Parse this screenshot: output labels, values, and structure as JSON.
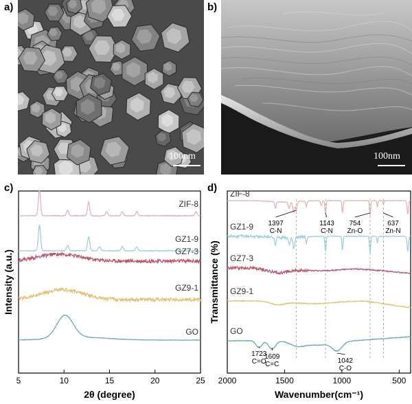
{
  "panels": {
    "a": {
      "label": "a)",
      "scale": "100nm"
    },
    "b": {
      "label": "b)",
      "scale": "100nm"
    },
    "c": {
      "label": "c)"
    },
    "d": {
      "label": "d)"
    }
  },
  "chart_data": [
    {
      "type": "line",
      "panel": "c",
      "xlabel": "2θ (degree)",
      "ylabel": "Intensity (a.u.)",
      "xlim": [
        5,
        25
      ],
      "xticks": [
        5,
        10,
        15,
        20,
        25
      ],
      "grid": false,
      "series": [
        {
          "name": "ZIF-8",
          "color": "#e3b4b9",
          "peaks": [
            7.3,
            10.4,
            12.7,
            14.7,
            16.4,
            18.0,
            24.5
          ]
        },
        {
          "name": "GZ1-9",
          "color": "#9fcfde",
          "peaks": [
            7.3,
            10.4,
            12.7,
            13.9,
            16.4,
            18.0
          ]
        },
        {
          "name": "GZ7-3",
          "color": "#b9566d",
          "broad_peak": 9.5
        },
        {
          "name": "GZ9-1",
          "color": "#e3c277",
          "broad_peak": 9.8
        },
        {
          "name": "GO",
          "color": "#6da8b0",
          "peak": 10.1
        }
      ]
    },
    {
      "type": "line",
      "panel": "d",
      "xlabel": "Wavenumber(cm⁻¹)",
      "ylabel": "Transmittance (%)",
      "xlim": [
        2000,
        400
      ],
      "xticks": [
        2000,
        1500,
        1000,
        500
      ],
      "grid": false,
      "reference_lines": [
        1397,
        1143,
        754,
        637
      ],
      "series": [
        {
          "name": "ZIF-8",
          "color": "#e3b4b9"
        },
        {
          "name": "GZ1-9",
          "color": "#9fcfde"
        },
        {
          "name": "GZ7-3",
          "color": "#b9566d"
        },
        {
          "name": "GZ9-1",
          "color": "#e3c277"
        },
        {
          "name": "GO",
          "color": "#6da8b0"
        }
      ],
      "annotations": [
        {
          "value": "1397",
          "group": "C-N"
        },
        {
          "value": "1143",
          "group": "C-N"
        },
        {
          "value": "754",
          "group": "Zn-O"
        },
        {
          "value": "637",
          "group": "Zn-N"
        },
        {
          "value": "1723",
          "group": "C=O"
        },
        {
          "value": "1609",
          "group": "C=C"
        },
        {
          "value": "1042",
          "group": "C-O"
        }
      ]
    }
  ]
}
